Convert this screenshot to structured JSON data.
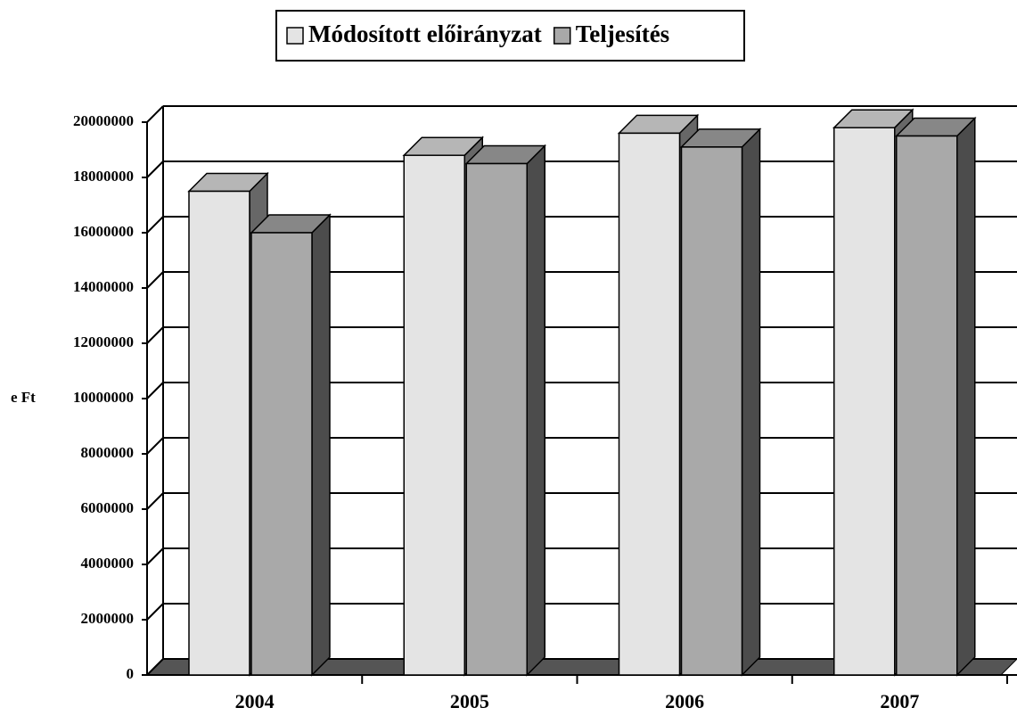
{
  "chart_data": {
    "type": "bar3d",
    "y_label": "e Ft",
    "categories": [
      "2004",
      "2005",
      "2006",
      "2007"
    ],
    "series": [
      {
        "name": "Módosított előirányzat",
        "color": "#e4e4e4",
        "values": [
          17500000,
          18800000,
          19600000,
          19800000
        ]
      },
      {
        "name": "Teljesítés",
        "color": "#a9a9a9",
        "values": [
          16000000,
          18500000,
          19100000,
          19500000
        ]
      }
    ],
    "ylim": [
      0,
      20000000
    ],
    "yticks": [
      0,
      2000000,
      4000000,
      6000000,
      8000000,
      10000000,
      12000000,
      14000000,
      16000000,
      18000000,
      20000000
    ],
    "grid": true,
    "legend": "top"
  }
}
